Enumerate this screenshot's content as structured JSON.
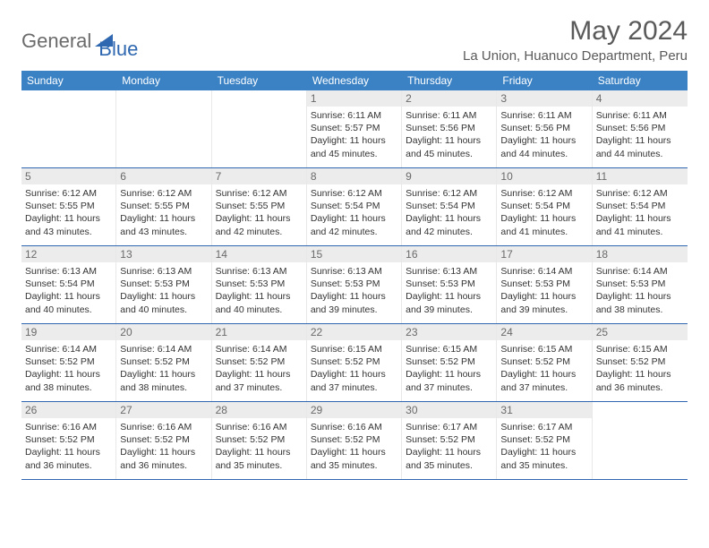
{
  "brand": {
    "part1": "General",
    "part2": "Blue"
  },
  "title": "May 2024",
  "location": "La Union, Huanuco Department, Peru",
  "colors": {
    "header_bg": "#3b82c4",
    "header_text": "#ffffff",
    "border": "#2f68b0",
    "daynum_bg": "#ececec",
    "daynum_text": "#6a6a6a",
    "body_text": "#333333",
    "logo_gray": "#6b6b6b",
    "logo_blue": "#2f68b0",
    "background": "#ffffff"
  },
  "typography": {
    "title_fontsize": 30,
    "location_fontsize": 15,
    "header_fontsize": 12,
    "daynum_fontsize": 12,
    "cell_fontsize": 10.5,
    "logo_fontsize": 22
  },
  "layout": {
    "columns": 7,
    "rows": 5,
    "cell_min_height": 86
  },
  "weekdays": [
    "Sunday",
    "Monday",
    "Tuesday",
    "Wednesday",
    "Thursday",
    "Friday",
    "Saturday"
  ],
  "weeks": [
    [
      null,
      null,
      null,
      {
        "n": "1",
        "sr": "Sunrise: 6:11 AM",
        "ss": "Sunset: 5:57 PM",
        "d1": "Daylight: 11 hours",
        "d2": "and 45 minutes."
      },
      {
        "n": "2",
        "sr": "Sunrise: 6:11 AM",
        "ss": "Sunset: 5:56 PM",
        "d1": "Daylight: 11 hours",
        "d2": "and 45 minutes."
      },
      {
        "n": "3",
        "sr": "Sunrise: 6:11 AM",
        "ss": "Sunset: 5:56 PM",
        "d1": "Daylight: 11 hours",
        "d2": "and 44 minutes."
      },
      {
        "n": "4",
        "sr": "Sunrise: 6:11 AM",
        "ss": "Sunset: 5:56 PM",
        "d1": "Daylight: 11 hours",
        "d2": "and 44 minutes."
      }
    ],
    [
      {
        "n": "5",
        "sr": "Sunrise: 6:12 AM",
        "ss": "Sunset: 5:55 PM",
        "d1": "Daylight: 11 hours",
        "d2": "and 43 minutes."
      },
      {
        "n": "6",
        "sr": "Sunrise: 6:12 AM",
        "ss": "Sunset: 5:55 PM",
        "d1": "Daylight: 11 hours",
        "d2": "and 43 minutes."
      },
      {
        "n": "7",
        "sr": "Sunrise: 6:12 AM",
        "ss": "Sunset: 5:55 PM",
        "d1": "Daylight: 11 hours",
        "d2": "and 42 minutes."
      },
      {
        "n": "8",
        "sr": "Sunrise: 6:12 AM",
        "ss": "Sunset: 5:54 PM",
        "d1": "Daylight: 11 hours",
        "d2": "and 42 minutes."
      },
      {
        "n": "9",
        "sr": "Sunrise: 6:12 AM",
        "ss": "Sunset: 5:54 PM",
        "d1": "Daylight: 11 hours",
        "d2": "and 42 minutes."
      },
      {
        "n": "10",
        "sr": "Sunrise: 6:12 AM",
        "ss": "Sunset: 5:54 PM",
        "d1": "Daylight: 11 hours",
        "d2": "and 41 minutes."
      },
      {
        "n": "11",
        "sr": "Sunrise: 6:12 AM",
        "ss": "Sunset: 5:54 PM",
        "d1": "Daylight: 11 hours",
        "d2": "and 41 minutes."
      }
    ],
    [
      {
        "n": "12",
        "sr": "Sunrise: 6:13 AM",
        "ss": "Sunset: 5:54 PM",
        "d1": "Daylight: 11 hours",
        "d2": "and 40 minutes."
      },
      {
        "n": "13",
        "sr": "Sunrise: 6:13 AM",
        "ss": "Sunset: 5:53 PM",
        "d1": "Daylight: 11 hours",
        "d2": "and 40 minutes."
      },
      {
        "n": "14",
        "sr": "Sunrise: 6:13 AM",
        "ss": "Sunset: 5:53 PM",
        "d1": "Daylight: 11 hours",
        "d2": "and 40 minutes."
      },
      {
        "n": "15",
        "sr": "Sunrise: 6:13 AM",
        "ss": "Sunset: 5:53 PM",
        "d1": "Daylight: 11 hours",
        "d2": "and 39 minutes."
      },
      {
        "n": "16",
        "sr": "Sunrise: 6:13 AM",
        "ss": "Sunset: 5:53 PM",
        "d1": "Daylight: 11 hours",
        "d2": "and 39 minutes."
      },
      {
        "n": "17",
        "sr": "Sunrise: 6:14 AM",
        "ss": "Sunset: 5:53 PM",
        "d1": "Daylight: 11 hours",
        "d2": "and 39 minutes."
      },
      {
        "n": "18",
        "sr": "Sunrise: 6:14 AM",
        "ss": "Sunset: 5:53 PM",
        "d1": "Daylight: 11 hours",
        "d2": "and 38 minutes."
      }
    ],
    [
      {
        "n": "19",
        "sr": "Sunrise: 6:14 AM",
        "ss": "Sunset: 5:52 PM",
        "d1": "Daylight: 11 hours",
        "d2": "and 38 minutes."
      },
      {
        "n": "20",
        "sr": "Sunrise: 6:14 AM",
        "ss": "Sunset: 5:52 PM",
        "d1": "Daylight: 11 hours",
        "d2": "and 38 minutes."
      },
      {
        "n": "21",
        "sr": "Sunrise: 6:14 AM",
        "ss": "Sunset: 5:52 PM",
        "d1": "Daylight: 11 hours",
        "d2": "and 37 minutes."
      },
      {
        "n": "22",
        "sr": "Sunrise: 6:15 AM",
        "ss": "Sunset: 5:52 PM",
        "d1": "Daylight: 11 hours",
        "d2": "and 37 minutes."
      },
      {
        "n": "23",
        "sr": "Sunrise: 6:15 AM",
        "ss": "Sunset: 5:52 PM",
        "d1": "Daylight: 11 hours",
        "d2": "and 37 minutes."
      },
      {
        "n": "24",
        "sr": "Sunrise: 6:15 AM",
        "ss": "Sunset: 5:52 PM",
        "d1": "Daylight: 11 hours",
        "d2": "and 37 minutes."
      },
      {
        "n": "25",
        "sr": "Sunrise: 6:15 AM",
        "ss": "Sunset: 5:52 PM",
        "d1": "Daylight: 11 hours",
        "d2": "and 36 minutes."
      }
    ],
    [
      {
        "n": "26",
        "sr": "Sunrise: 6:16 AM",
        "ss": "Sunset: 5:52 PM",
        "d1": "Daylight: 11 hours",
        "d2": "and 36 minutes."
      },
      {
        "n": "27",
        "sr": "Sunrise: 6:16 AM",
        "ss": "Sunset: 5:52 PM",
        "d1": "Daylight: 11 hours",
        "d2": "and 36 minutes."
      },
      {
        "n": "28",
        "sr": "Sunrise: 6:16 AM",
        "ss": "Sunset: 5:52 PM",
        "d1": "Daylight: 11 hours",
        "d2": "and 35 minutes."
      },
      {
        "n": "29",
        "sr": "Sunrise: 6:16 AM",
        "ss": "Sunset: 5:52 PM",
        "d1": "Daylight: 11 hours",
        "d2": "and 35 minutes."
      },
      {
        "n": "30",
        "sr": "Sunrise: 6:17 AM",
        "ss": "Sunset: 5:52 PM",
        "d1": "Daylight: 11 hours",
        "d2": "and 35 minutes."
      },
      {
        "n": "31",
        "sr": "Sunrise: 6:17 AM",
        "ss": "Sunset: 5:52 PM",
        "d1": "Daylight: 11 hours",
        "d2": "and 35 minutes."
      },
      null
    ]
  ]
}
